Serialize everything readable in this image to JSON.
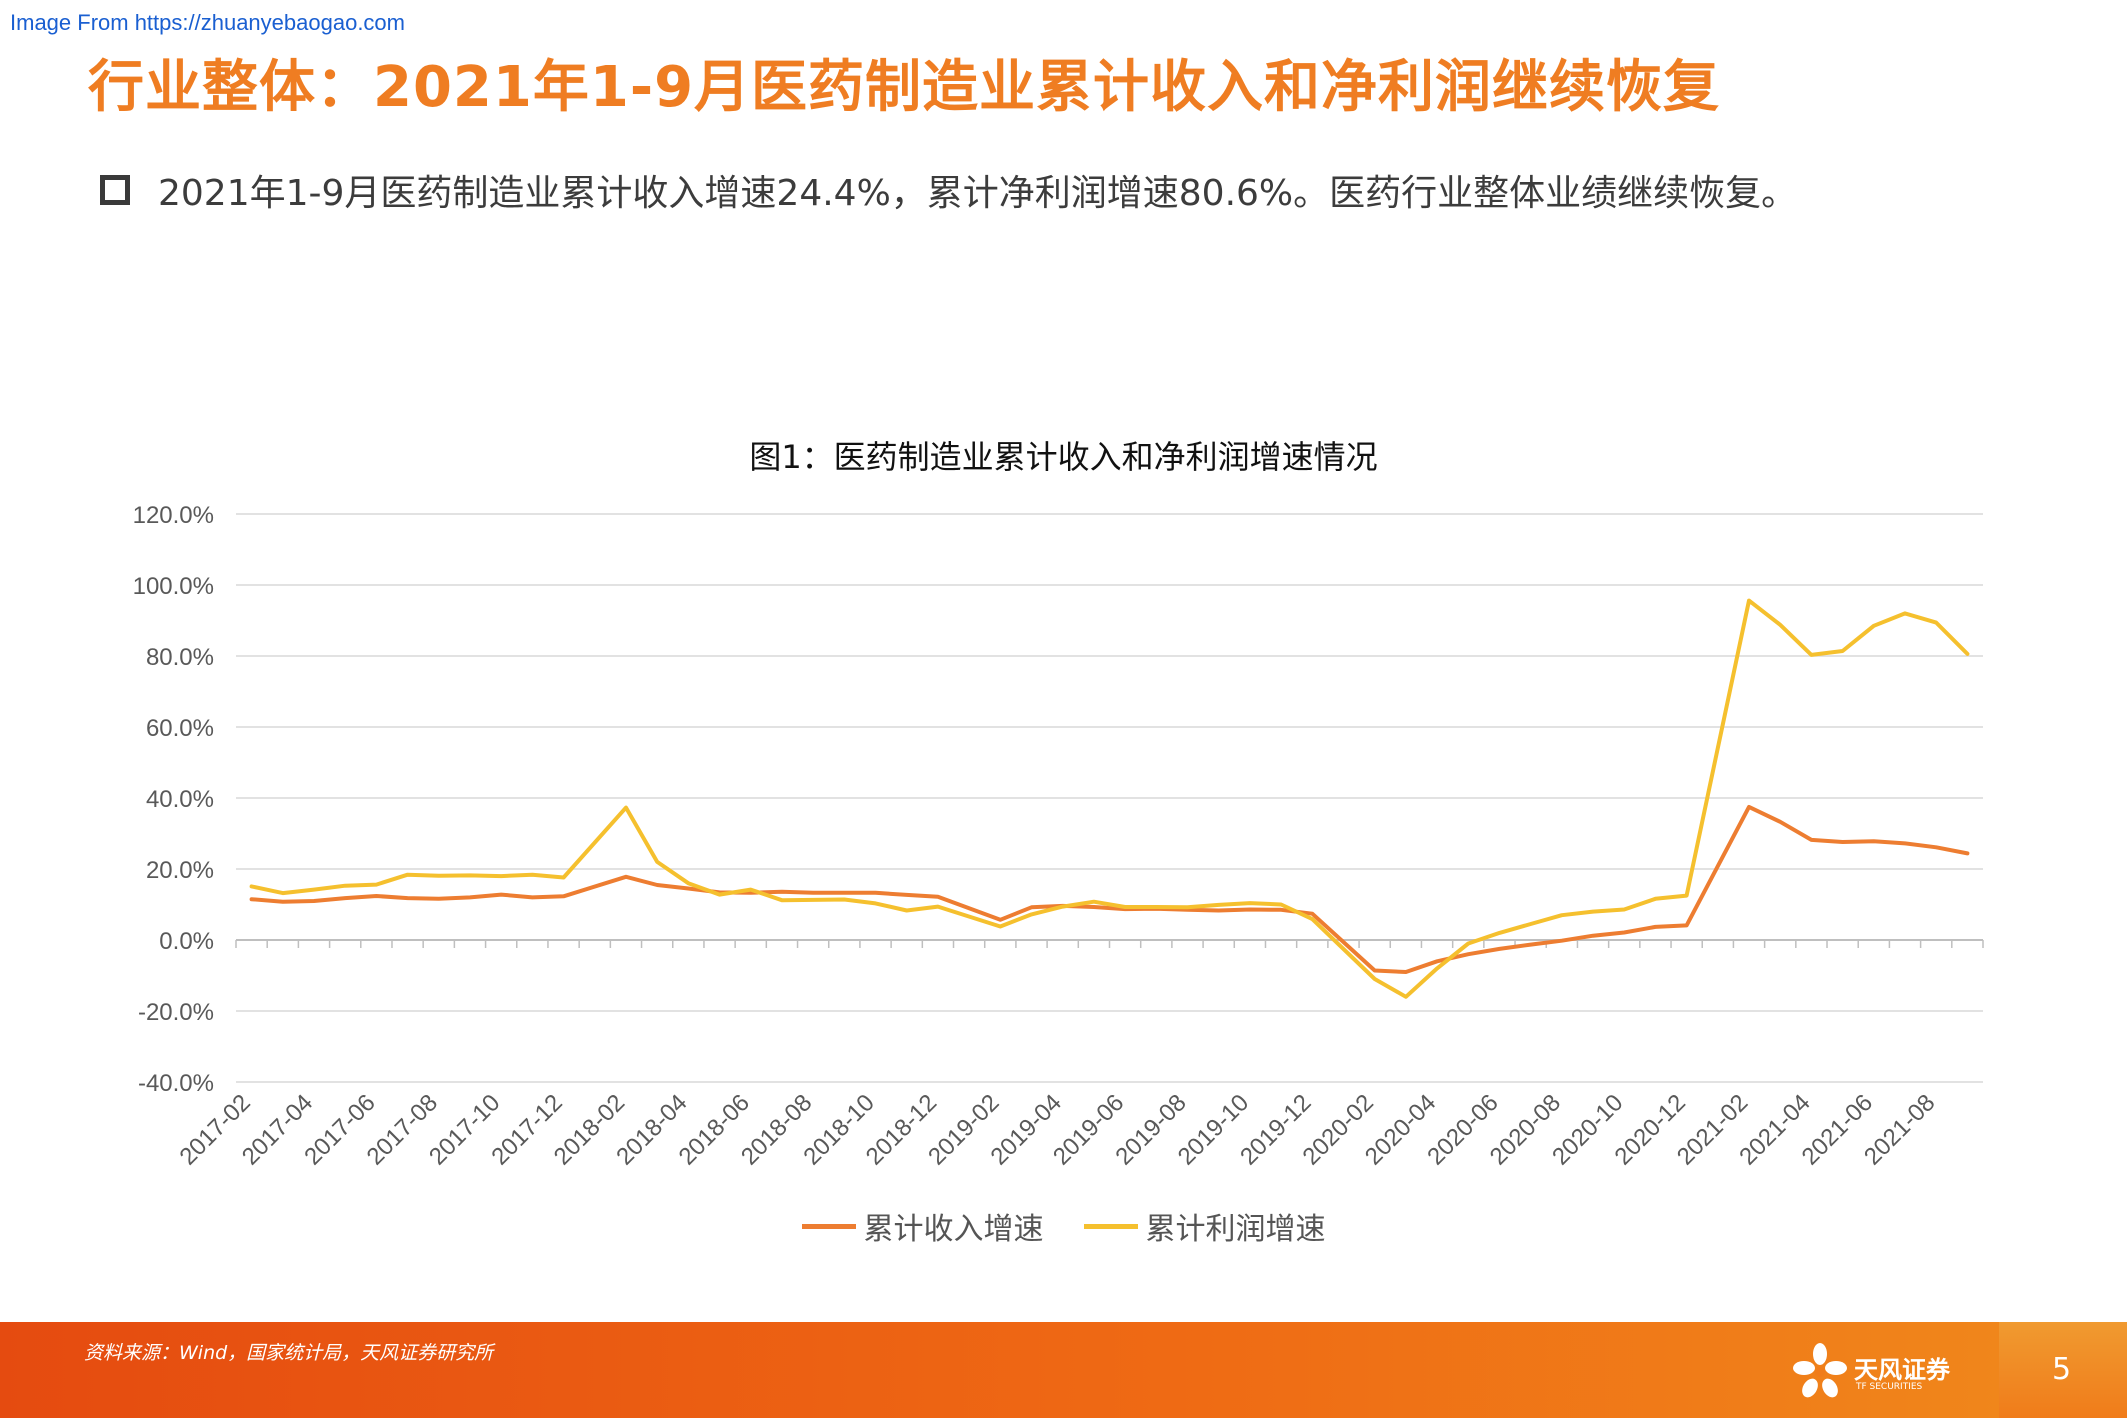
{
  "watermark": "Image From https://zhuanyebaogao.com",
  "title": "行业整体：2021年1-9月医药制造业累计收入和净利润继续恢复",
  "bullet": "2021年1-9月医药制造业累计收入增速24.4%，累计净利润增速80.6%。医药行业整体业绩继续恢复。",
  "footer": {
    "source": "资料来源：Wind，国家统计局，天风证券研究所",
    "logo_name": "天风证券",
    "logo_sub": "TF SECURITIES",
    "page_number": "5"
  },
  "colors": {
    "accent": "#ef7d22",
    "revenue": "#ed7d31",
    "profit": "#f5c02e"
  },
  "chart_data": {
    "type": "line",
    "title": "图1：医药制造业累计收入和净利润增速情况",
    "xlabel": "",
    "ylabel": "",
    "ylim": [
      -40,
      120
    ],
    "yticks": [
      "120.0%",
      "100.0%",
      "80.0%",
      "60.0%",
      "40.0%",
      "20.0%",
      "0.0%",
      "-20.0%",
      "-40.0%"
    ],
    "grid": true,
    "legend_position": "bottom",
    "x": [
      "2017-02",
      "2017-03",
      "2017-04",
      "2017-05",
      "2017-06",
      "2017-07",
      "2017-08",
      "2017-09",
      "2017-10",
      "2017-11",
      "2017-12",
      "2018-01",
      "2018-02",
      "2018-03",
      "2018-04",
      "2018-05",
      "2018-06",
      "2018-07",
      "2018-08",
      "2018-09",
      "2018-10",
      "2018-11",
      "2018-12",
      "2019-01",
      "2019-02",
      "2019-03",
      "2019-04",
      "2019-05",
      "2019-06",
      "2019-07",
      "2019-08",
      "2019-09",
      "2019-10",
      "2019-11",
      "2019-12",
      "2020-01",
      "2020-02",
      "2020-03",
      "2020-04",
      "2020-05",
      "2020-06",
      "2020-07",
      "2020-08",
      "2020-09",
      "2020-10",
      "2020-11",
      "2020-12",
      "2021-01",
      "2021-02",
      "2021-03",
      "2021-04",
      "2021-05",
      "2021-06",
      "2021-07",
      "2021-08",
      "2021-09"
    ],
    "xtick_labels": [
      "2017-02",
      "2017-04",
      "2017-06",
      "2017-08",
      "2017-10",
      "2017-12",
      "2018-02",
      "2018-04",
      "2018-06",
      "2018-08",
      "2018-10",
      "2018-12",
      "2019-02",
      "2019-04",
      "2019-06",
      "2019-08",
      "2019-10",
      "2019-12",
      "2020-02",
      "2020-04",
      "2020-06",
      "2020-08",
      "2020-10",
      "2020-12",
      "2021-02",
      "2021-04",
      "2021-06",
      "2021-08"
    ],
    "series": [
      {
        "name": "累计收入增速",
        "color": "#ed7d31",
        "values": [
          11.5,
          10.8,
          11.0,
          11.8,
          12.4,
          11.8,
          11.6,
          12.0,
          12.8,
          12.0,
          12.3,
          null,
          17.8,
          15.5,
          14.5,
          13.4,
          13.3,
          13.6,
          13.3,
          13.3,
          13.3,
          12.7,
          12.2,
          null,
          5.7,
          9.2,
          9.6,
          9.3,
          8.7,
          8.8,
          8.5,
          8.3,
          8.6,
          8.5,
          7.4,
          null,
          -8.6,
          -9.0,
          -6.0,
          -4.0,
          -2.5,
          -1.3,
          -0.2,
          1.2,
          2.1,
          3.7,
          4.1,
          null,
          37.5,
          33.3,
          28.2,
          27.6,
          27.8,
          27.2,
          26.1,
          24.4
        ]
      },
      {
        "name": "累计利润增速",
        "color": "#f5c02e",
        "values": [
          15.1,
          13.2,
          14.2,
          15.3,
          15.6,
          18.4,
          18.1,
          18.2,
          18.0,
          18.4,
          17.6,
          null,
          37.3,
          22.0,
          16.0,
          12.8,
          14.2,
          11.2,
          11.3,
          11.4,
          10.3,
          8.3,
          9.4,
          null,
          3.8,
          7.2,
          9.4,
          10.8,
          9.3,
          9.3,
          9.2,
          9.9,
          10.4,
          10.0,
          5.9,
          null,
          -11.0,
          -16.0,
          -8.0,
          -1.0,
          2.0,
          4.5,
          7.0,
          8.0,
          8.6,
          11.6,
          12.5,
          null,
          95.6,
          88.8,
          80.3,
          81.4,
          88.5,
          92.0,
          89.4,
          80.6
        ]
      }
    ]
  }
}
